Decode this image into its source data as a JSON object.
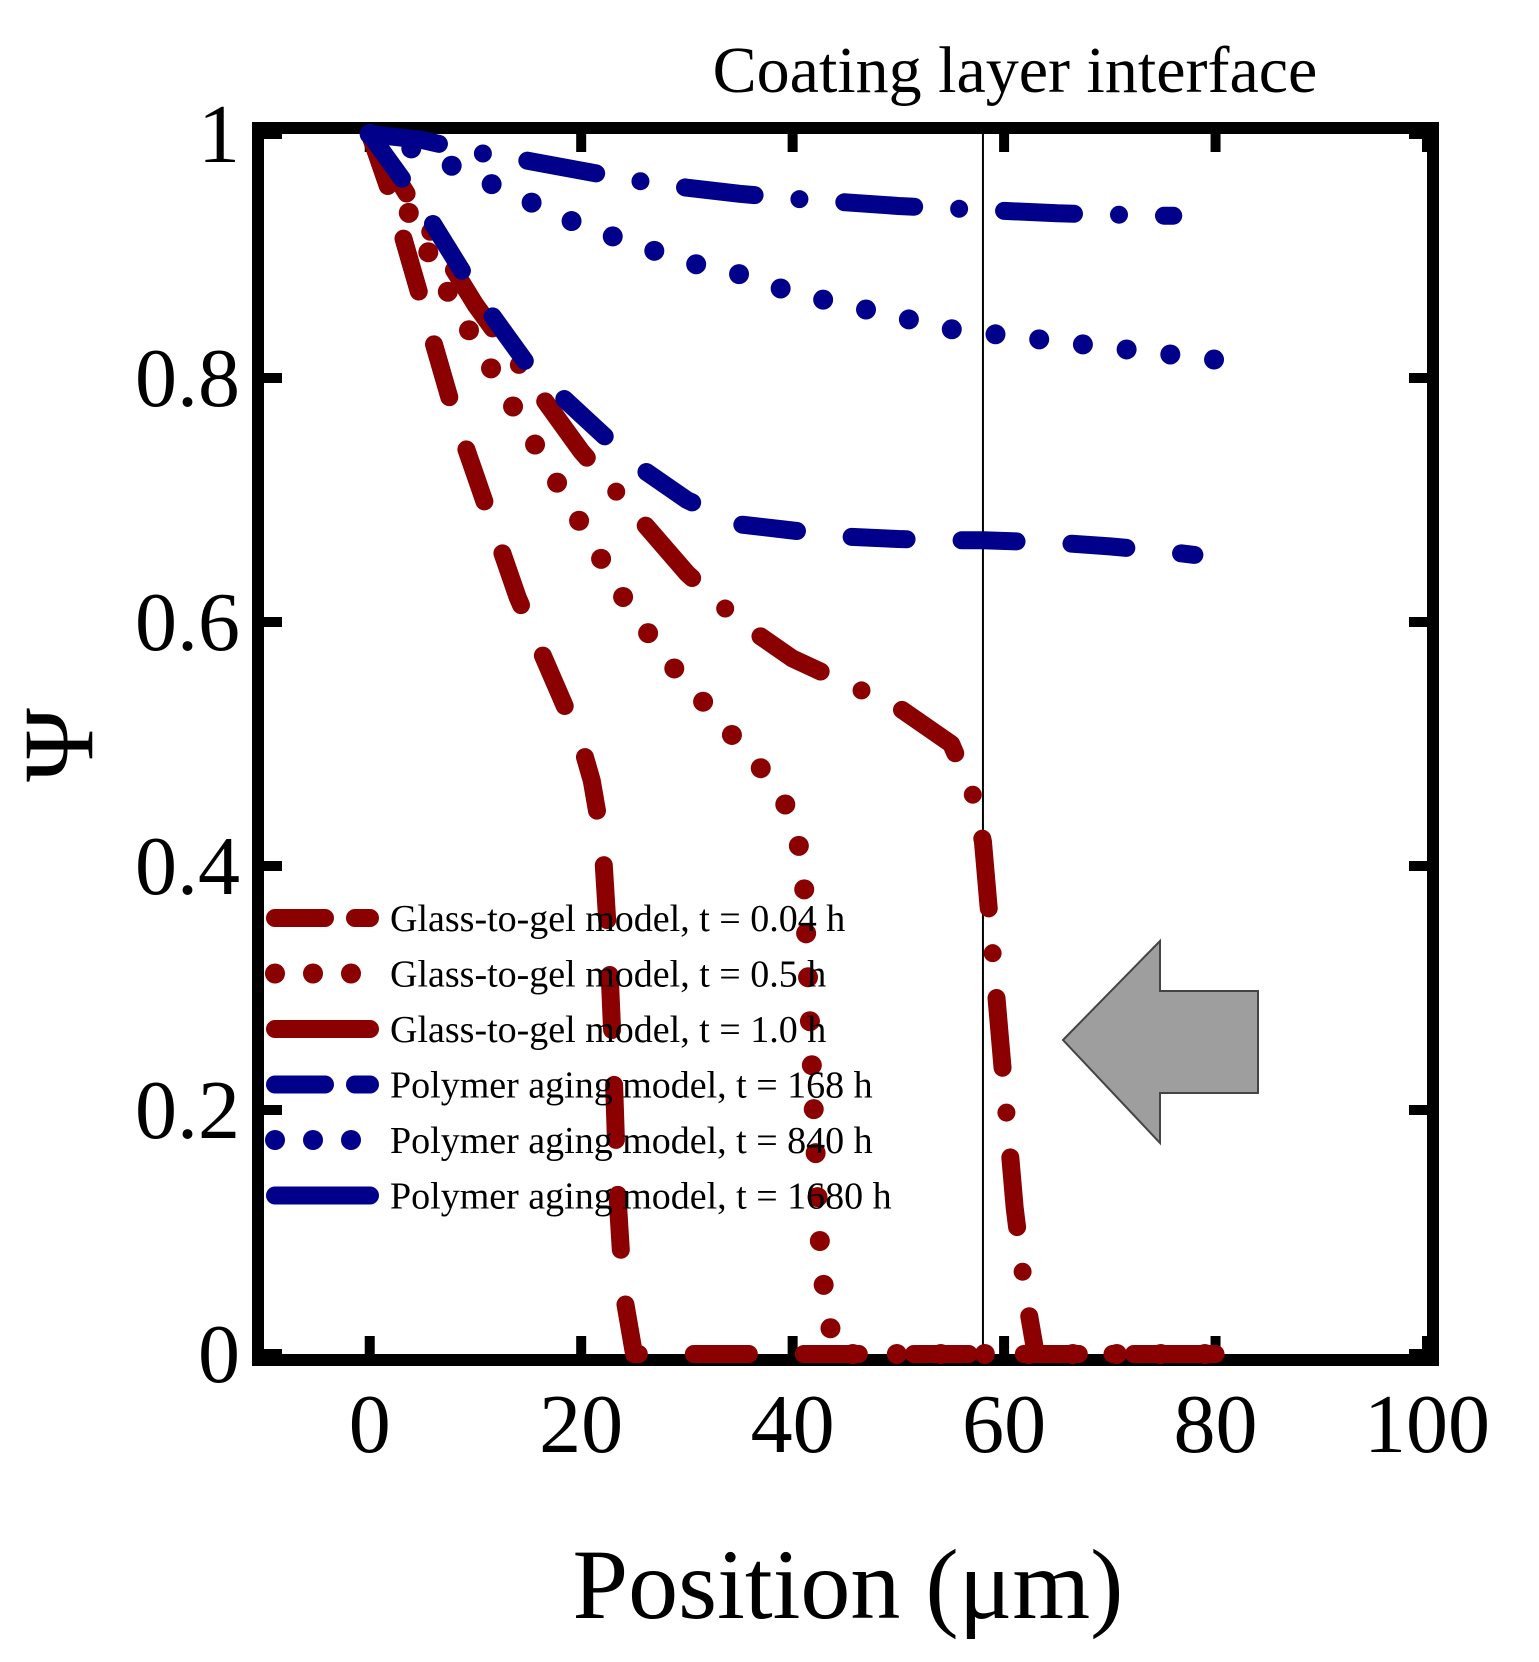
{
  "chart_data": {
    "type": "line",
    "title": "",
    "annotation": "Coating layer interface",
    "interface_x": 58,
    "xlabel": "Position (μm)",
    "ylabel": "Ψ",
    "xlim": [
      -10,
      100
    ],
    "ylim": [
      0,
      1
    ],
    "xticks": [
      0,
      20,
      40,
      60,
      80,
      100
    ],
    "yticks": [
      0,
      0.2,
      0.4,
      0.6,
      0.8,
      1
    ],
    "xtick_labels": [
      "0",
      "20",
      "40",
      "60",
      "80",
      "100"
    ],
    "ytick_labels": [
      "0",
      "0.2",
      "0.4",
      "0.6",
      "0.8",
      "1"
    ],
    "grid": false,
    "legend_position": "lower-left",
    "arrow_direction": "left",
    "colors": {
      "glass": "#8b0000",
      "polymer": "#00008b",
      "arrow": "#9e9e9e",
      "axis": "#000000"
    },
    "series": [
      {
        "name": "Glass-to-gel model, t = 0.04 h",
        "color": "#8b0000",
        "style": "dashed",
        "x": [
          0,
          2,
          4,
          6,
          8,
          10,
          12,
          14,
          16,
          18,
          20,
          21,
          22,
          22.5,
          23,
          23.5,
          24,
          25,
          30,
          40,
          60,
          80
        ],
        "y": [
          1.0,
          0.95,
          0.89,
          0.83,
          0.77,
          0.72,
          0.67,
          0.62,
          0.58,
          0.54,
          0.5,
          0.47,
          0.42,
          0.35,
          0.25,
          0.12,
          0.05,
          0.0,
          0.0,
          0.0,
          0.0,
          0.0
        ]
      },
      {
        "name": "Glass-to-gel model, t = 0.5 h",
        "color": "#8b0000",
        "style": "dotted",
        "x": [
          0,
          4,
          8,
          12,
          16,
          20,
          24,
          28,
          32,
          36,
          38,
          40,
          41,
          41.5,
          42,
          42.5,
          43,
          44,
          50,
          60,
          80
        ],
        "y": [
          1.0,
          0.93,
          0.86,
          0.8,
          0.74,
          0.68,
          0.62,
          0.57,
          0.53,
          0.49,
          0.47,
          0.44,
          0.4,
          0.3,
          0.2,
          0.1,
          0.05,
          0.0,
          0.0,
          0.0,
          0.0
        ]
      },
      {
        "name": "Glass-to-gel model, t = 1.0 h",
        "color": "#8b0000",
        "style": "dashdot",
        "x": [
          0,
          5,
          10,
          15,
          20,
          25,
          30,
          35,
          40,
          45,
          50,
          55,
          57,
          58,
          59,
          60,
          61,
          62,
          63,
          70,
          80
        ],
        "y": [
          1.0,
          0.93,
          0.86,
          0.8,
          0.74,
          0.69,
          0.64,
          0.6,
          0.57,
          0.55,
          0.53,
          0.5,
          0.46,
          0.42,
          0.32,
          0.22,
          0.12,
          0.05,
          0.0,
          0.0,
          0.0
        ]
      },
      {
        "name": "Polymer aging model, t = 168 h",
        "color": "#00008b",
        "style": "dashed",
        "x": [
          0,
          5,
          10,
          15,
          20,
          25,
          30,
          35,
          40,
          45,
          50,
          55,
          58,
          65,
          70,
          75,
          78
        ],
        "y": [
          1.0,
          0.94,
          0.87,
          0.81,
          0.77,
          0.73,
          0.7,
          0.68,
          0.675,
          0.67,
          0.668,
          0.667,
          0.667,
          0.665,
          0.662,
          0.658,
          0.655
        ]
      },
      {
        "name": "Polymer aging model, t = 840 h",
        "color": "#00008b",
        "style": "dotted",
        "x": [
          0,
          5,
          10,
          15,
          20,
          25,
          30,
          35,
          40,
          45,
          50,
          55,
          60,
          65,
          70,
          75,
          80
        ],
        "y": [
          1.0,
          0.985,
          0.965,
          0.945,
          0.925,
          0.91,
          0.895,
          0.885,
          0.87,
          0.86,
          0.85,
          0.84,
          0.835,
          0.83,
          0.825,
          0.82,
          0.815
        ]
      },
      {
        "name": "Polymer aging model, t = 1680 h",
        "color": "#00008b",
        "style": "dashdot",
        "x": [
          0,
          5,
          10,
          15,
          20,
          25,
          30,
          35,
          40,
          45,
          50,
          55,
          60,
          65,
          70,
          75,
          76
        ],
        "y": [
          1.0,
          0.995,
          0.985,
          0.978,
          0.97,
          0.962,
          0.956,
          0.951,
          0.947,
          0.944,
          0.941,
          0.939,
          0.937,
          0.935,
          0.934,
          0.933,
          0.933
        ]
      }
    ]
  }
}
